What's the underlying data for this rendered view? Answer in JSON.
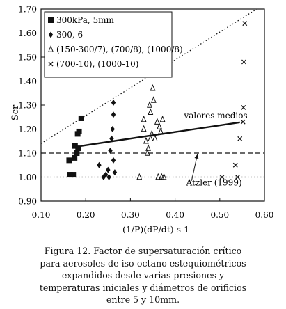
{
  "chart_data": {
    "type": "scatter",
    "xlabel": "-(1/P)(dP/dt) s-1",
    "ylabel": "Scr",
    "xlim": [
      0.1,
      0.6
    ],
    "ylim": [
      0.9,
      1.7
    ],
    "xticks": [
      "0.10",
      "0.20",
      "0.30",
      "0.40",
      "0.50",
      "0.60"
    ],
    "yticks": [
      "0.90",
      "1.00",
      "1.10",
      "1.20",
      "1.30",
      "1.40",
      "1.50",
      "1.60",
      "1.70"
    ],
    "legend_position": "top-left",
    "series": [
      {
        "name": "300kPa, 5mm",
        "marker": "square",
        "points": [
          [
            0.163,
            1.07
          ],
          [
            0.165,
            1.01
          ],
          [
            0.172,
            1.01
          ],
          [
            0.175,
            1.08
          ],
          [
            0.176,
            1.13
          ],
          [
            0.18,
            1.1
          ],
          [
            0.183,
            1.12
          ],
          [
            0.182,
            1.18
          ],
          [
            0.185,
            1.19
          ],
          [
            0.19,
            1.245
          ]
        ]
      },
      {
        "name": "300, 6",
        "marker": "diamond",
        "points": [
          [
            0.23,
            1.05
          ],
          [
            0.24,
            1.0
          ],
          [
            0.245,
            1.01
          ],
          [
            0.25,
            1.03
          ],
          [
            0.252,
            1.0
          ],
          [
            0.255,
            1.11
          ],
          [
            0.258,
            1.16
          ],
          [
            0.26,
            1.2
          ],
          [
            0.262,
            1.26
          ],
          [
            0.262,
            1.31
          ],
          [
            0.265,
            1.02
          ],
          [
            0.262,
            1.07
          ]
        ]
      },
      {
        "name": "(150-300/7), (700/8), (1000/8)",
        "marker": "triangle",
        "points": [
          [
            0.32,
            1.0
          ],
          [
            0.33,
            1.2
          ],
          [
            0.33,
            1.24
          ],
          [
            0.335,
            1.15
          ],
          [
            0.338,
            1.1
          ],
          [
            0.34,
            1.12
          ],
          [
            0.343,
            1.3
          ],
          [
            0.345,
            1.27
          ],
          [
            0.348,
            1.18
          ],
          [
            0.35,
            1.37
          ],
          [
            0.352,
            1.32
          ],
          [
            0.355,
            1.16
          ],
          [
            0.36,
            1.23
          ],
          [
            0.362,
            1.0
          ],
          [
            0.365,
            1.21
          ],
          [
            0.368,
            1.19
          ],
          [
            0.37,
            1.0
          ],
          [
            0.372,
            1.24
          ],
          [
            0.375,
            1.0
          ],
          [
            0.345,
            1.16
          ]
        ]
      },
      {
        "name": "(700-10), (1000-10)",
        "marker": "x",
        "points": [
          [
            0.505,
            1.0
          ],
          [
            0.535,
            1.05
          ],
          [
            0.54,
            1.0
          ],
          [
            0.545,
            1.16
          ],
          [
            0.552,
            1.23
          ],
          [
            0.553,
            1.29
          ],
          [
            0.554,
            1.48
          ],
          [
            0.556,
            1.64
          ]
        ]
      }
    ],
    "lines": [
      {
        "name": "valores medios",
        "style": "solid",
        "points": [
          [
            0.19,
            1.13
          ],
          [
            0.545,
            1.228
          ]
        ]
      },
      {
        "name": "",
        "style": "dotted",
        "points": [
          [
            0.1,
            1.14
          ],
          [
            0.6,
            1.72
          ]
        ]
      },
      {
        "name": "",
        "style": "dashed",
        "points": [
          [
            0.1,
            1.1
          ],
          [
            0.6,
            1.1
          ]
        ]
      },
      {
        "name": "",
        "style": "dotted",
        "points": [
          [
            0.1,
            1.0
          ],
          [
            0.6,
            1.0
          ]
        ]
      }
    ],
    "annotations": [
      {
        "text": "valores medios",
        "x": 0.42,
        "y": 1.245
      },
      {
        "text": "Atzler (1999)",
        "x": 0.425,
        "y": 0.965
      }
    ],
    "annotation_arrow": {
      "from": [
        0.437,
        0.985
      ],
      "to": [
        0.45,
        1.095
      ]
    }
  },
  "caption": {
    "lines": [
      "Figura 12. Factor de supersaturación crítico",
      "para aerosoles de iso-octano estequiométricos",
      "expandidos desde varias presiones y",
      "temperaturas iniciales y diámetros de orificios",
      "entre 5 y 10mm."
    ]
  }
}
